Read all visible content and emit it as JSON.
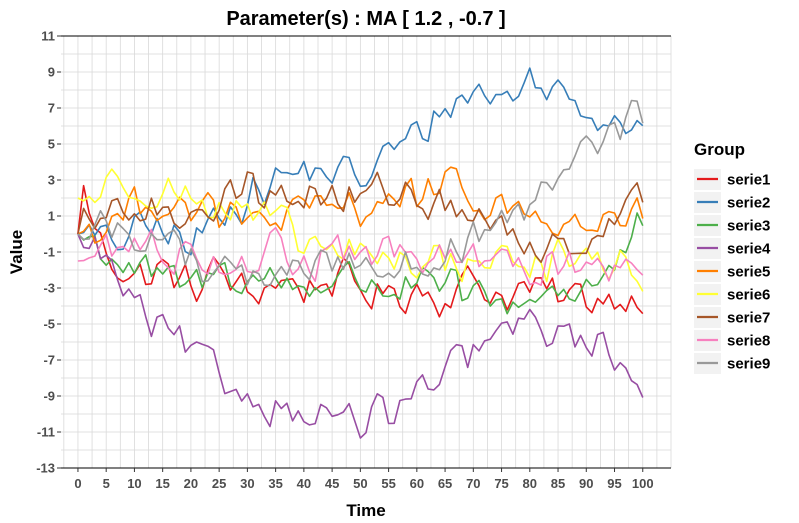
{
  "chart_data": {
    "type": "line",
    "title": "Parameter(s) :  MA [ 1.2 , -0.7 ]",
    "xlabel": "Time",
    "ylabel": "Value",
    "xlim": [
      -3,
      105
    ],
    "ylim": [
      -13,
      11
    ],
    "x_ticks": [
      0,
      5,
      10,
      15,
      20,
      25,
      30,
      35,
      40,
      45,
      50,
      55,
      60,
      65,
      70,
      75,
      80,
      85,
      90,
      95,
      100
    ],
    "y_ticks": [
      -13,
      -11,
      -9,
      -7,
      -5,
      -3,
      -1,
      1,
      3,
      5,
      7,
      9,
      11
    ],
    "grid": true,
    "legend": {
      "title": "Group",
      "position": "right"
    },
    "x": {
      "start": 0,
      "end": 100,
      "step": 1
    },
    "series": [
      {
        "name": "serie1",
        "color": "#E41A1C",
        "anchors": [
          [
            0,
            0
          ],
          [
            1,
            3
          ],
          [
            2,
            1
          ],
          [
            5,
            -1
          ],
          [
            10,
            -2.5
          ],
          [
            15,
            -2
          ],
          [
            20,
            -3
          ],
          [
            25,
            -2
          ],
          [
            30,
            -3.5
          ],
          [
            35,
            -2.5
          ],
          [
            40,
            -3
          ],
          [
            45,
            -2.5
          ],
          [
            50,
            -3
          ],
          [
            55,
            -3.5
          ],
          [
            60,
            -3
          ],
          [
            65,
            -3.5
          ],
          [
            70,
            -2.5
          ],
          [
            75,
            -3.5
          ],
          [
            80,
            -3
          ],
          [
            85,
            -3.5
          ],
          [
            90,
            -3.5
          ],
          [
            95,
            -3.5
          ],
          [
            100,
            -3.5
          ]
        ]
      },
      {
        "name": "serie2",
        "color": "#377EB8",
        "anchors": [
          [
            0,
            0
          ],
          [
            5,
            -0.5
          ],
          [
            10,
            0
          ],
          [
            15,
            0.5
          ],
          [
            20,
            -1
          ],
          [
            25,
            1.5
          ],
          [
            30,
            2
          ],
          [
            35,
            3
          ],
          [
            40,
            3.5
          ],
          [
            45,
            3.5
          ],
          [
            50,
            3
          ],
          [
            55,
            4.5
          ],
          [
            60,
            5.5
          ],
          [
            65,
            7
          ],
          [
            70,
            8
          ],
          [
            75,
            7.5
          ],
          [
            80,
            8.5
          ],
          [
            85,
            8
          ],
          [
            90,
            7
          ],
          [
            95,
            6.5
          ],
          [
            100,
            6.5
          ]
        ]
      },
      {
        "name": "serie3",
        "color": "#4DAF4A",
        "anchors": [
          [
            0,
            0
          ],
          [
            5,
            -1
          ],
          [
            10,
            -2
          ],
          [
            15,
            -2.5
          ],
          [
            20,
            -3
          ],
          [
            25,
            -2
          ],
          [
            30,
            -2.5
          ],
          [
            35,
            -2.5
          ],
          [
            40,
            -3
          ],
          [
            45,
            -2.5
          ],
          [
            50,
            -2.5
          ],
          [
            55,
            -3
          ],
          [
            60,
            -3
          ],
          [
            65,
            -3
          ],
          [
            70,
            -3.5
          ],
          [
            75,
            -4
          ],
          [
            80,
            -3.5
          ],
          [
            85,
            -3
          ],
          [
            90,
            -3
          ],
          [
            95,
            -2
          ],
          [
            100,
            0.5
          ]
        ]
      },
      {
        "name": "serie4",
        "color": "#984EA3",
        "anchors": [
          [
            0,
            0
          ],
          [
            5,
            -1.5
          ],
          [
            10,
            -4
          ],
          [
            15,
            -5.5
          ],
          [
            20,
            -6.5
          ],
          [
            25,
            -8
          ],
          [
            30,
            -9
          ],
          [
            35,
            -9.5
          ],
          [
            40,
            -10
          ],
          [
            45,
            -10
          ],
          [
            50,
            -10.5
          ],
          [
            55,
            -10
          ],
          [
            60,
            -9
          ],
          [
            65,
            -8
          ],
          [
            70,
            -6.5
          ],
          [
            75,
            -5.5
          ],
          [
            80,
            -5
          ],
          [
            85,
            -5.5
          ],
          [
            90,
            -6
          ],
          [
            95,
            -6.5
          ],
          [
            100,
            -8.5
          ]
        ]
      },
      {
        "name": "serie5",
        "color": "#FF7F00",
        "anchors": [
          [
            0,
            0
          ],
          [
            5,
            0.5
          ],
          [
            10,
            1.5
          ],
          [
            15,
            2
          ],
          [
            20,
            1.5
          ],
          [
            25,
            1
          ],
          [
            30,
            0.5
          ],
          [
            35,
            1
          ],
          [
            40,
            1
          ],
          [
            45,
            1.5
          ],
          [
            50,
            1.5
          ],
          [
            55,
            2
          ],
          [
            60,
            2
          ],
          [
            65,
            2.5
          ],
          [
            70,
            2
          ],
          [
            75,
            1.5
          ],
          [
            80,
            1
          ],
          [
            85,
            0.5
          ],
          [
            90,
            0.5
          ],
          [
            95,
            0.5
          ],
          [
            100,
            1
          ]
        ]
      },
      {
        "name": "serie6",
        "color": "#FFFF33",
        "anchors": [
          [
            0,
            2
          ],
          [
            5,
            2.5
          ],
          [
            10,
            3
          ],
          [
            15,
            2.5
          ],
          [
            20,
            2
          ],
          [
            25,
            1.5
          ],
          [
            30,
            1
          ],
          [
            35,
            0.5
          ],
          [
            40,
            -0.5
          ],
          [
            45,
            -1
          ],
          [
            50,
            -1
          ],
          [
            55,
            -1.5
          ],
          [
            60,
            -1.5
          ],
          [
            65,
            -1.5
          ],
          [
            70,
            -1.5
          ],
          [
            75,
            -1.5
          ],
          [
            80,
            -1.5
          ],
          [
            85,
            -1.5
          ],
          [
            90,
            -1.5
          ],
          [
            95,
            -1.5
          ],
          [
            100,
            -2.5
          ]
        ]
      },
      {
        "name": "serie7",
        "color": "#A65628",
        "anchors": [
          [
            0,
            0
          ],
          [
            5,
            1
          ],
          [
            10,
            1.5
          ],
          [
            15,
            1
          ],
          [
            20,
            1.5
          ],
          [
            25,
            2
          ],
          [
            30,
            2.5
          ],
          [
            35,
            2
          ],
          [
            40,
            2.5
          ],
          [
            45,
            2
          ],
          [
            50,
            2
          ],
          [
            55,
            2.5
          ],
          [
            60,
            2
          ],
          [
            65,
            1.5
          ],
          [
            70,
            1
          ],
          [
            75,
            0
          ],
          [
            80,
            -0.5
          ],
          [
            85,
            -0.5
          ],
          [
            90,
            0
          ],
          [
            95,
            1
          ],
          [
            100,
            2
          ]
        ]
      },
      {
        "name": "serie8",
        "color": "#F781BF",
        "anchors": [
          [
            0,
            -1.5
          ],
          [
            5,
            -1
          ],
          [
            10,
            -0.5
          ],
          [
            15,
            -1
          ],
          [
            20,
            -1
          ],
          [
            25,
            -1.5
          ],
          [
            30,
            -1.5
          ],
          [
            35,
            -1
          ],
          [
            40,
            -1.5
          ],
          [
            45,
            -1.5
          ],
          [
            50,
            -1
          ],
          [
            55,
            -1
          ],
          [
            60,
            -1.5
          ],
          [
            65,
            -1.5
          ],
          [
            70,
            -1
          ],
          [
            75,
            -2
          ],
          [
            80,
            -2
          ],
          [
            85,
            -1.5
          ],
          [
            90,
            -1.5
          ],
          [
            95,
            -2
          ],
          [
            100,
            -1.5
          ]
        ]
      },
      {
        "name": "serie9",
        "color": "#999999",
        "anchors": [
          [
            0,
            0
          ],
          [
            5,
            0.5
          ],
          [
            10,
            0
          ],
          [
            15,
            -0.5
          ],
          [
            20,
            -1
          ],
          [
            25,
            -2
          ],
          [
            30,
            -2.5
          ],
          [
            35,
            -2
          ],
          [
            40,
            -2
          ],
          [
            45,
            -1.5
          ],
          [
            50,
            -1.5
          ],
          [
            55,
            -2
          ],
          [
            60,
            -1.5
          ],
          [
            65,
            -1
          ],
          [
            70,
            -0.5
          ],
          [
            75,
            0
          ],
          [
            80,
            1.5
          ],
          [
            85,
            3
          ],
          [
            90,
            4.5
          ],
          [
            95,
            6
          ],
          [
            100,
            6.5
          ]
        ]
      }
    ]
  }
}
